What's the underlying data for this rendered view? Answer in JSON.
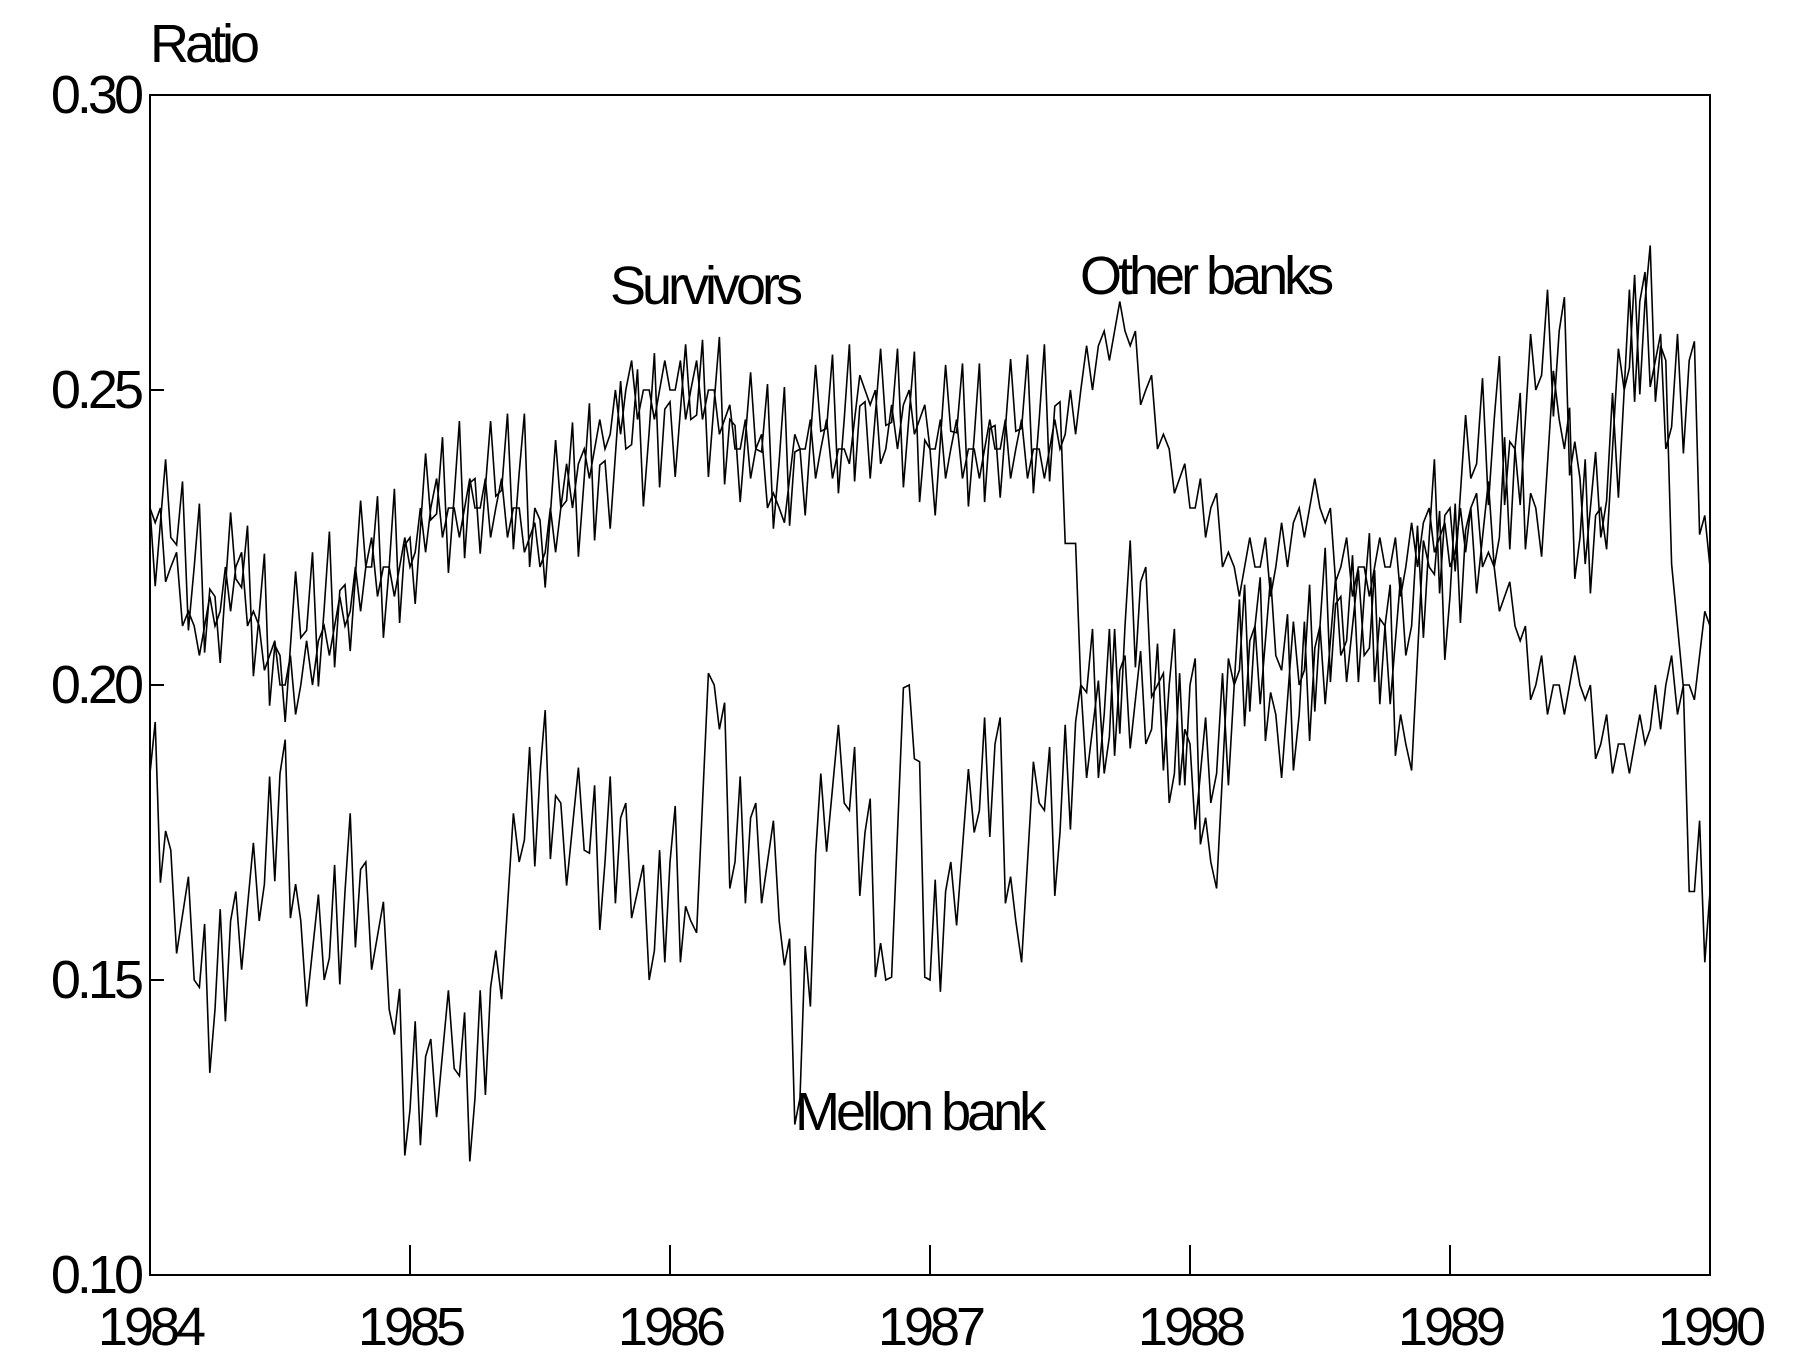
{
  "chart_data": {
    "type": "line",
    "title": "",
    "xlabel": "",
    "ylabel": "Ratio",
    "xlim": [
      1984.0,
      1990.0
    ],
    "ylim": [
      0.1,
      0.3
    ],
    "x_ticks": [
      "1984",
      "1985",
      "1986",
      "1987",
      "1988",
      "1989",
      "1990"
    ],
    "y_ticks": [
      "0.10",
      "0.15",
      "0.20",
      "0.25",
      "0.30"
    ],
    "grid": false,
    "legend": "none",
    "annotations": [
      {
        "text": "Survivors",
        "series": "Survivors"
      },
      {
        "text": "Other banks",
        "series": "Other banks"
      },
      {
        "text": "Mellon bank",
        "series": "Mellon bank"
      }
    ],
    "series": [
      {
        "name": "Survivors",
        "x": [
          1984.0,
          1984.08,
          1984.17,
          1984.25,
          1984.33,
          1984.42,
          1984.5,
          1984.58,
          1984.67,
          1984.75,
          1984.83,
          1984.92,
          1985.0,
          1985.08,
          1985.17,
          1985.25,
          1985.33,
          1985.42,
          1985.5,
          1985.58,
          1985.67,
          1985.75,
          1985.83,
          1985.92,
          1986.0,
          1986.08,
          1986.17,
          1986.25,
          1986.33,
          1986.42,
          1986.5,
          1986.58,
          1986.67,
          1986.75,
          1986.83,
          1986.92,
          1987.0,
          1987.08,
          1987.17,
          1987.25,
          1987.33,
          1987.42,
          1987.5,
          1987.58,
          1987.67,
          1987.75,
          1987.83,
          1987.92,
          1988.0,
          1988.08,
          1988.17,
          1988.25,
          1988.33,
          1988.42,
          1988.5,
          1988.58,
          1988.67,
          1988.75,
          1988.83,
          1988.92,
          1989.0,
          1989.08,
          1989.17,
          1989.25,
          1989.33,
          1989.42,
          1989.5,
          1989.58,
          1989.67,
          1989.75,
          1989.83,
          1989.92,
          1990.0
        ],
        "values": [
          0.23,
          0.22,
          0.21,
          0.21,
          0.22,
          0.21,
          0.2,
          0.2,
          0.21,
          0.21,
          0.22,
          0.22,
          0.22,
          0.23,
          0.23,
          0.23,
          0.23,
          0.23,
          0.22,
          0.23,
          0.24,
          0.24,
          0.25,
          0.25,
          0.25,
          0.25,
          0.25,
          0.24,
          0.24,
          0.23,
          0.24,
          0.24,
          0.24,
          0.25,
          0.24,
          0.25,
          0.24,
          0.24,
          0.24,
          0.24,
          0.24,
          0.24,
          0.24,
          0.25,
          0.26,
          0.26,
          0.25,
          0.24,
          0.23,
          0.23,
          0.22,
          0.22,
          0.22,
          0.23,
          0.23,
          0.22,
          0.22,
          0.22,
          0.22,
          0.23,
          0.22,
          0.23,
          0.22,
          0.21,
          0.2,
          0.2,
          0.2,
          0.19,
          0.19,
          0.19,
          0.2,
          0.2,
          0.21
        ]
      },
      {
        "name": "Other banks",
        "x": [
          1984.0,
          1984.08,
          1984.17,
          1984.25,
          1984.33,
          1984.42,
          1984.5,
          1984.58,
          1984.67,
          1984.75,
          1984.83,
          1984.92,
          1985.0,
          1985.08,
          1985.17,
          1985.25,
          1985.33,
          1985.42,
          1985.5,
          1985.58,
          1985.67,
          1985.75,
          1985.83,
          1985.92,
          1986.0,
          1986.08,
          1986.17,
          1986.25,
          1986.33,
          1986.42,
          1986.5,
          1986.58,
          1986.67,
          1986.75,
          1986.83,
          1986.92,
          1987.0,
          1987.08,
          1987.17,
          1987.25,
          1987.33,
          1987.42,
          1987.5,
          1987.58,
          1987.67,
          1987.75,
          1987.83,
          1987.92,
          1988.0,
          1988.08,
          1988.17,
          1988.25,
          1988.33,
          1988.42,
          1988.5,
          1988.58,
          1988.67,
          1988.75,
          1988.83,
          1988.92,
          1989.0,
          1989.08,
          1989.17,
          1989.25,
          1989.33,
          1989.42,
          1989.5,
          1989.58,
          1989.67,
          1989.75,
          1989.83,
          1989.92,
          1990.0
        ],
        "values": [
          0.23,
          0.225,
          0.22,
          0.215,
          0.218,
          0.212,
          0.205,
          0.208,
          0.213,
          0.217,
          0.22,
          0.22,
          0.225,
          0.228,
          0.232,
          0.235,
          0.232,
          0.236,
          0.228,
          0.23,
          0.235,
          0.238,
          0.24,
          0.243,
          0.248,
          0.245,
          0.248,
          0.244,
          0.24,
          0.238,
          0.24,
          0.243,
          0.245,
          0.248,
          0.244,
          0.246,
          0.24,
          0.243,
          0.242,
          0.244,
          0.243,
          0.245,
          0.248,
          0.2,
          0.195,
          0.205,
          0.19,
          0.2,
          0.19,
          0.18,
          0.2,
          0.21,
          0.205,
          0.195,
          0.21,
          0.205,
          0.215,
          0.21,
          0.205,
          0.225,
          0.23,
          0.235,
          0.245,
          0.24,
          0.25,
          0.26,
          0.235,
          0.225,
          0.25,
          0.27,
          0.24,
          0.255,
          0.22
        ]
      },
      {
        "name": "Mellon bank",
        "x": [
          1984.0,
          1984.08,
          1984.17,
          1984.25,
          1984.33,
          1984.42,
          1984.5,
          1984.58,
          1984.67,
          1984.75,
          1984.83,
          1984.92,
          1985.0,
          1985.08,
          1985.17,
          1985.25,
          1985.33,
          1985.42,
          1985.5,
          1985.58,
          1985.67,
          1985.75,
          1985.83,
          1985.92,
          1986.0,
          1986.08,
          1986.17,
          1986.25,
          1986.33,
          1986.42,
          1986.5,
          1986.58,
          1986.67,
          1986.75,
          1986.83,
          1986.92,
          1987.0,
          1987.08,
          1987.17,
          1987.25,
          1987.33,
          1987.42,
          1987.5,
          1987.58,
          1987.67,
          1987.75,
          1987.83,
          1987.92,
          1988.0,
          1988.08,
          1988.17,
          1988.25,
          1988.33,
          1988.42,
          1988.5,
          1988.58,
          1988.67,
          1988.75,
          1988.83,
          1988.92,
          1989.0,
          1989.08,
          1989.17,
          1989.25,
          1989.33,
          1989.42,
          1989.5,
          1989.58,
          1989.67,
          1989.75,
          1989.83,
          1989.92,
          1990.0
        ],
        "values": [
          0.185,
          0.172,
          0.15,
          0.145,
          0.165,
          0.16,
          0.185,
          0.16,
          0.15,
          0.165,
          0.17,
          0.145,
          0.128,
          0.14,
          0.135,
          0.13,
          0.155,
          0.17,
          0.185,
          0.18,
          0.172,
          0.17,
          0.18,
          0.15,
          0.17,
          0.16,
          0.2,
          0.17,
          0.18,
          0.16,
          0.13,
          0.185,
          0.18,
          0.175,
          0.15,
          0.2,
          0.15,
          0.17,
          0.175,
          0.19,
          0.16,
          0.18,
          0.175,
          0.2,
          0.185,
          0.21,
          0.22,
          0.18,
          0.2,
          0.17,
          0.2,
          0.21,
          0.195,
          0.2,
          0.21,
          0.215,
          0.205,
          0.21,
          0.19,
          0.22,
          0.215,
          0.23,
          0.22,
          0.24,
          0.23,
          0.245,
          0.225,
          0.23,
          0.25,
          0.265,
          0.255,
          0.165,
          0.165
        ]
      }
    ]
  }
}
